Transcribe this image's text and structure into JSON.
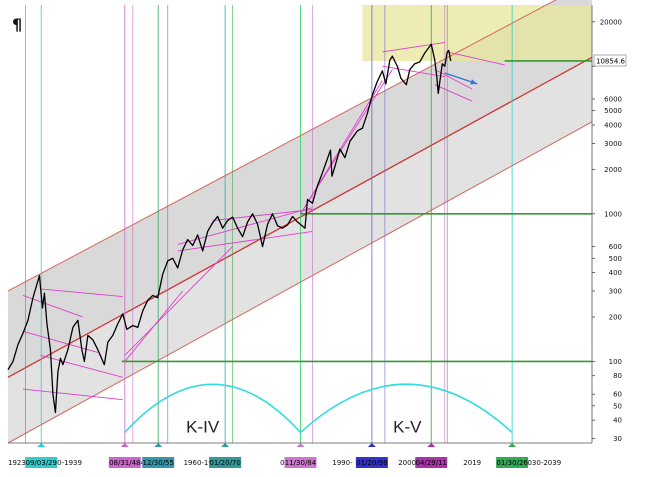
{
  "corner_mark": "¶",
  "chart_data": {
    "type": "line",
    "title": "",
    "xlabel": "",
    "ylabel": "",
    "yscale": "log",
    "xlim": [
      1923,
      2040
    ],
    "ylim": [
      28,
      26000
    ],
    "grid": false,
    "y_ticks": [
      30,
      40,
      50,
      60,
      80,
      100,
      200,
      300,
      400,
      500,
      600,
      1000,
      2000,
      3000,
      4000,
      5000,
      6000,
      10000,
      20000
    ],
    "y_tick_labels": [
      "30",
      "40",
      "50",
      "60",
      "80",
      "100",
      "200",
      "300",
      "400",
      "500",
      "600",
      "1000",
      "2000",
      "3000",
      "4000",
      "5000",
      "6000",
      "",
      "20000"
    ],
    "last_value_label": "10854.6",
    "last_value": 10854.6,
    "decade_labels": [
      {
        "x": 1923,
        "text": "1923-"
      },
      {
        "x": 1934,
        "text": "1930-1939"
      },
      {
        "x": 1950,
        "text": "949"
      },
      {
        "x": 1962,
        "text": "1960-1969"
      },
      {
        "x": 1980,
        "text": "0-1979"
      },
      {
        "x": 1990,
        "text": "1990-"
      },
      {
        "x": 2005,
        "text": "2000-2009"
      },
      {
        "x": 2016,
        "text": "2019"
      },
      {
        "x": 2030,
        "text": "2030-2039"
      }
    ],
    "date_markers": [
      {
        "x": 1929.66,
        "label": "09/03/29",
        "bg": "#33cccc",
        "line_color": "#33cccc"
      },
      {
        "x": 1946.4,
        "label": "08/31/48",
        "bg": "#cc66cc",
        "line_color": "#cc66cc"
      },
      {
        "x": 1953.1,
        "label": "12/30/55",
        "bg": "#3399aa",
        "line_color": "#33aa66"
      },
      {
        "x": 1966.5,
        "label": "01/20/70",
        "bg": "#339999",
        "line_color": "#33aa99"
      },
      {
        "x": 1981.6,
        "label": "11/30/84",
        "bg": "#cc77cc",
        "line_color": "#33cc66"
      },
      {
        "x": 1995.9,
        "label": "01/20/98",
        "bg": "#3333cc",
        "line_color": "#6666cc"
      },
      {
        "x": 2007.8,
        "label": "04/29/11",
        "bg": "#aa33aa",
        "line_color": "#33aa33"
      },
      {
        "x": 2024.0,
        "label": "01/30/26",
        "bg": "#33aa55",
        "line_color": "#33cccc"
      }
    ],
    "extra_vertical_lines": [
      {
        "x": 1926.5,
        "color": "#6666cc"
      },
      {
        "x": 1948.0,
        "color": "#cc66cc"
      },
      {
        "x": 1955.0,
        "color": "#6666cc"
      },
      {
        "x": 1968.0,
        "color": "#33aa33"
      },
      {
        "x": 1984.0,
        "color": "#cc66cc"
      },
      {
        "x": 1998.5,
        "color": "#6666cc"
      },
      {
        "x": 2010.5,
        "color": "#cc66cc"
      },
      {
        "x": 2011.0,
        "color": "#33aa33"
      }
    ],
    "horizontal_levels": [
      {
        "y": 100,
        "x_from": 1945.8,
        "color": "#339933"
      },
      {
        "y": 1000,
        "x_from": 1981.6,
        "color": "#339933"
      },
      {
        "y": 10854.6,
        "x_from": 2022.5,
        "color": "#339933"
      }
    ],
    "wave_labels": [
      {
        "text": "K-IV",
        "x": 1962,
        "y": 33
      },
      {
        "text": "K-V",
        "x": 2003,
        "y": 33
      }
    ],
    "arcs": [
      {
        "x_start": 1946.4,
        "x_end": 1981.6,
        "peak": 70
      },
      {
        "x_start": 1981.6,
        "x_end": 2024.0,
        "peak": 70
      }
    ],
    "upper_channel": {
      "x1": 1923,
      "y1": 300,
      "x2": 2040,
      "y2": 38000
    },
    "mid_channel": {
      "x1": 1923,
      "y1": 78,
      "x2": 2040,
      "y2": 11500
    },
    "lower_channel": {
      "x1": 1923,
      "y1": 28,
      "x2": 2040,
      "y2": 4200
    },
    "blue_arrow": {
      "x1": 2010.5,
      "y1": 9000,
      "x2": 2017.0,
      "y2": 7600
    },
    "series": [
      {
        "values": [
          [
            1923,
            88
          ],
          [
            1924,
            100
          ],
          [
            1925,
            130
          ],
          [
            1926,
            155
          ],
          [
            1927,
            190
          ],
          [
            1928,
            270
          ],
          [
            1929.3,
            381
          ],
          [
            1929.9,
            230
          ],
          [
            1930.3,
            290
          ],
          [
            1930.8,
            180
          ],
          [
            1931.5,
            120
          ],
          [
            1932.0,
            60
          ],
          [
            1932.5,
            45
          ],
          [
            1933.0,
            85
          ],
          [
            1933.5,
            105
          ],
          [
            1934.0,
            95
          ],
          [
            1935.0,
            120
          ],
          [
            1936.0,
            170
          ],
          [
            1937.0,
            190
          ],
          [
            1937.8,
            120
          ],
          [
            1938.3,
            100
          ],
          [
            1939.0,
            150
          ],
          [
            1940.0,
            140
          ],
          [
            1941.0,
            120
          ],
          [
            1942.3,
            95
          ],
          [
            1943.0,
            135
          ],
          [
            1944.0,
            150
          ],
          [
            1945.0,
            180
          ],
          [
            1946.0,
            210
          ],
          [
            1946.8,
            165
          ],
          [
            1948.0,
            175
          ],
          [
            1949.0,
            170
          ],
          [
            1950.0,
            220
          ],
          [
            1951.0,
            260
          ],
          [
            1952.0,
            280
          ],
          [
            1953.0,
            270
          ],
          [
            1954.0,
            390
          ],
          [
            1955.0,
            480
          ],
          [
            1956.0,
            500
          ],
          [
            1957.0,
            430
          ],
          [
            1958.0,
            570
          ],
          [
            1959.0,
            670
          ],
          [
            1960.0,
            610
          ],
          [
            1961.0,
            720
          ],
          [
            1962.0,
            560
          ],
          [
            1963.0,
            760
          ],
          [
            1964.0,
            870
          ],
          [
            1965.0,
            960
          ],
          [
            1966.0,
            800
          ],
          [
            1967.0,
            900
          ],
          [
            1968.0,
            950
          ],
          [
            1969.0,
            800
          ],
          [
            1970.0,
            700
          ],
          [
            1971.0,
            880
          ],
          [
            1972.0,
            1000
          ],
          [
            1973.0,
            850
          ],
          [
            1974.0,
            600
          ],
          [
            1975.0,
            850
          ],
          [
            1976.0,
            1000
          ],
          [
            1977.0,
            830
          ],
          [
            1978.0,
            800
          ],
          [
            1979.0,
            840
          ],
          [
            1980.0,
            960
          ],
          [
            1981.0,
            880
          ],
          [
            1982.5,
            800
          ],
          [
            1983.0,
            1250
          ],
          [
            1984.0,
            1180
          ],
          [
            1985.0,
            1550
          ],
          [
            1986.0,
            1900
          ],
          [
            1987.6,
            2700
          ],
          [
            1987.9,
            1800
          ],
          [
            1988.5,
            2100
          ],
          [
            1989.5,
            2750
          ],
          [
            1990.5,
            2400
          ],
          [
            1991.5,
            3100
          ],
          [
            1993.0,
            3650
          ],
          [
            1994.0,
            3800
          ],
          [
            1995.0,
            4800
          ],
          [
            1996.0,
            6400
          ],
          [
            1997.0,
            7900
          ],
          [
            1998.0,
            9300
          ],
          [
            1998.7,
            7600
          ],
          [
            1999.5,
            11000
          ],
          [
            2000.0,
            11700
          ],
          [
            2001.0,
            10000
          ],
          [
            2001.7,
            8300
          ],
          [
            2002.8,
            7500
          ],
          [
            2003.5,
            9500
          ],
          [
            2004.5,
            10400
          ],
          [
            2005.5,
            10700
          ],
          [
            2006.5,
            12300
          ],
          [
            2007.8,
            14100
          ],
          [
            2008.5,
            11000
          ],
          [
            2008.9,
            8500
          ],
          [
            2009.2,
            6550
          ],
          [
            2010.0,
            10400
          ],
          [
            2010.5,
            10000
          ],
          [
            2011.0,
            12500
          ],
          [
            2011.3,
            12800
          ],
          [
            2011.7,
            10850
          ]
        ],
        "color": "#000000"
      }
    ]
  }
}
